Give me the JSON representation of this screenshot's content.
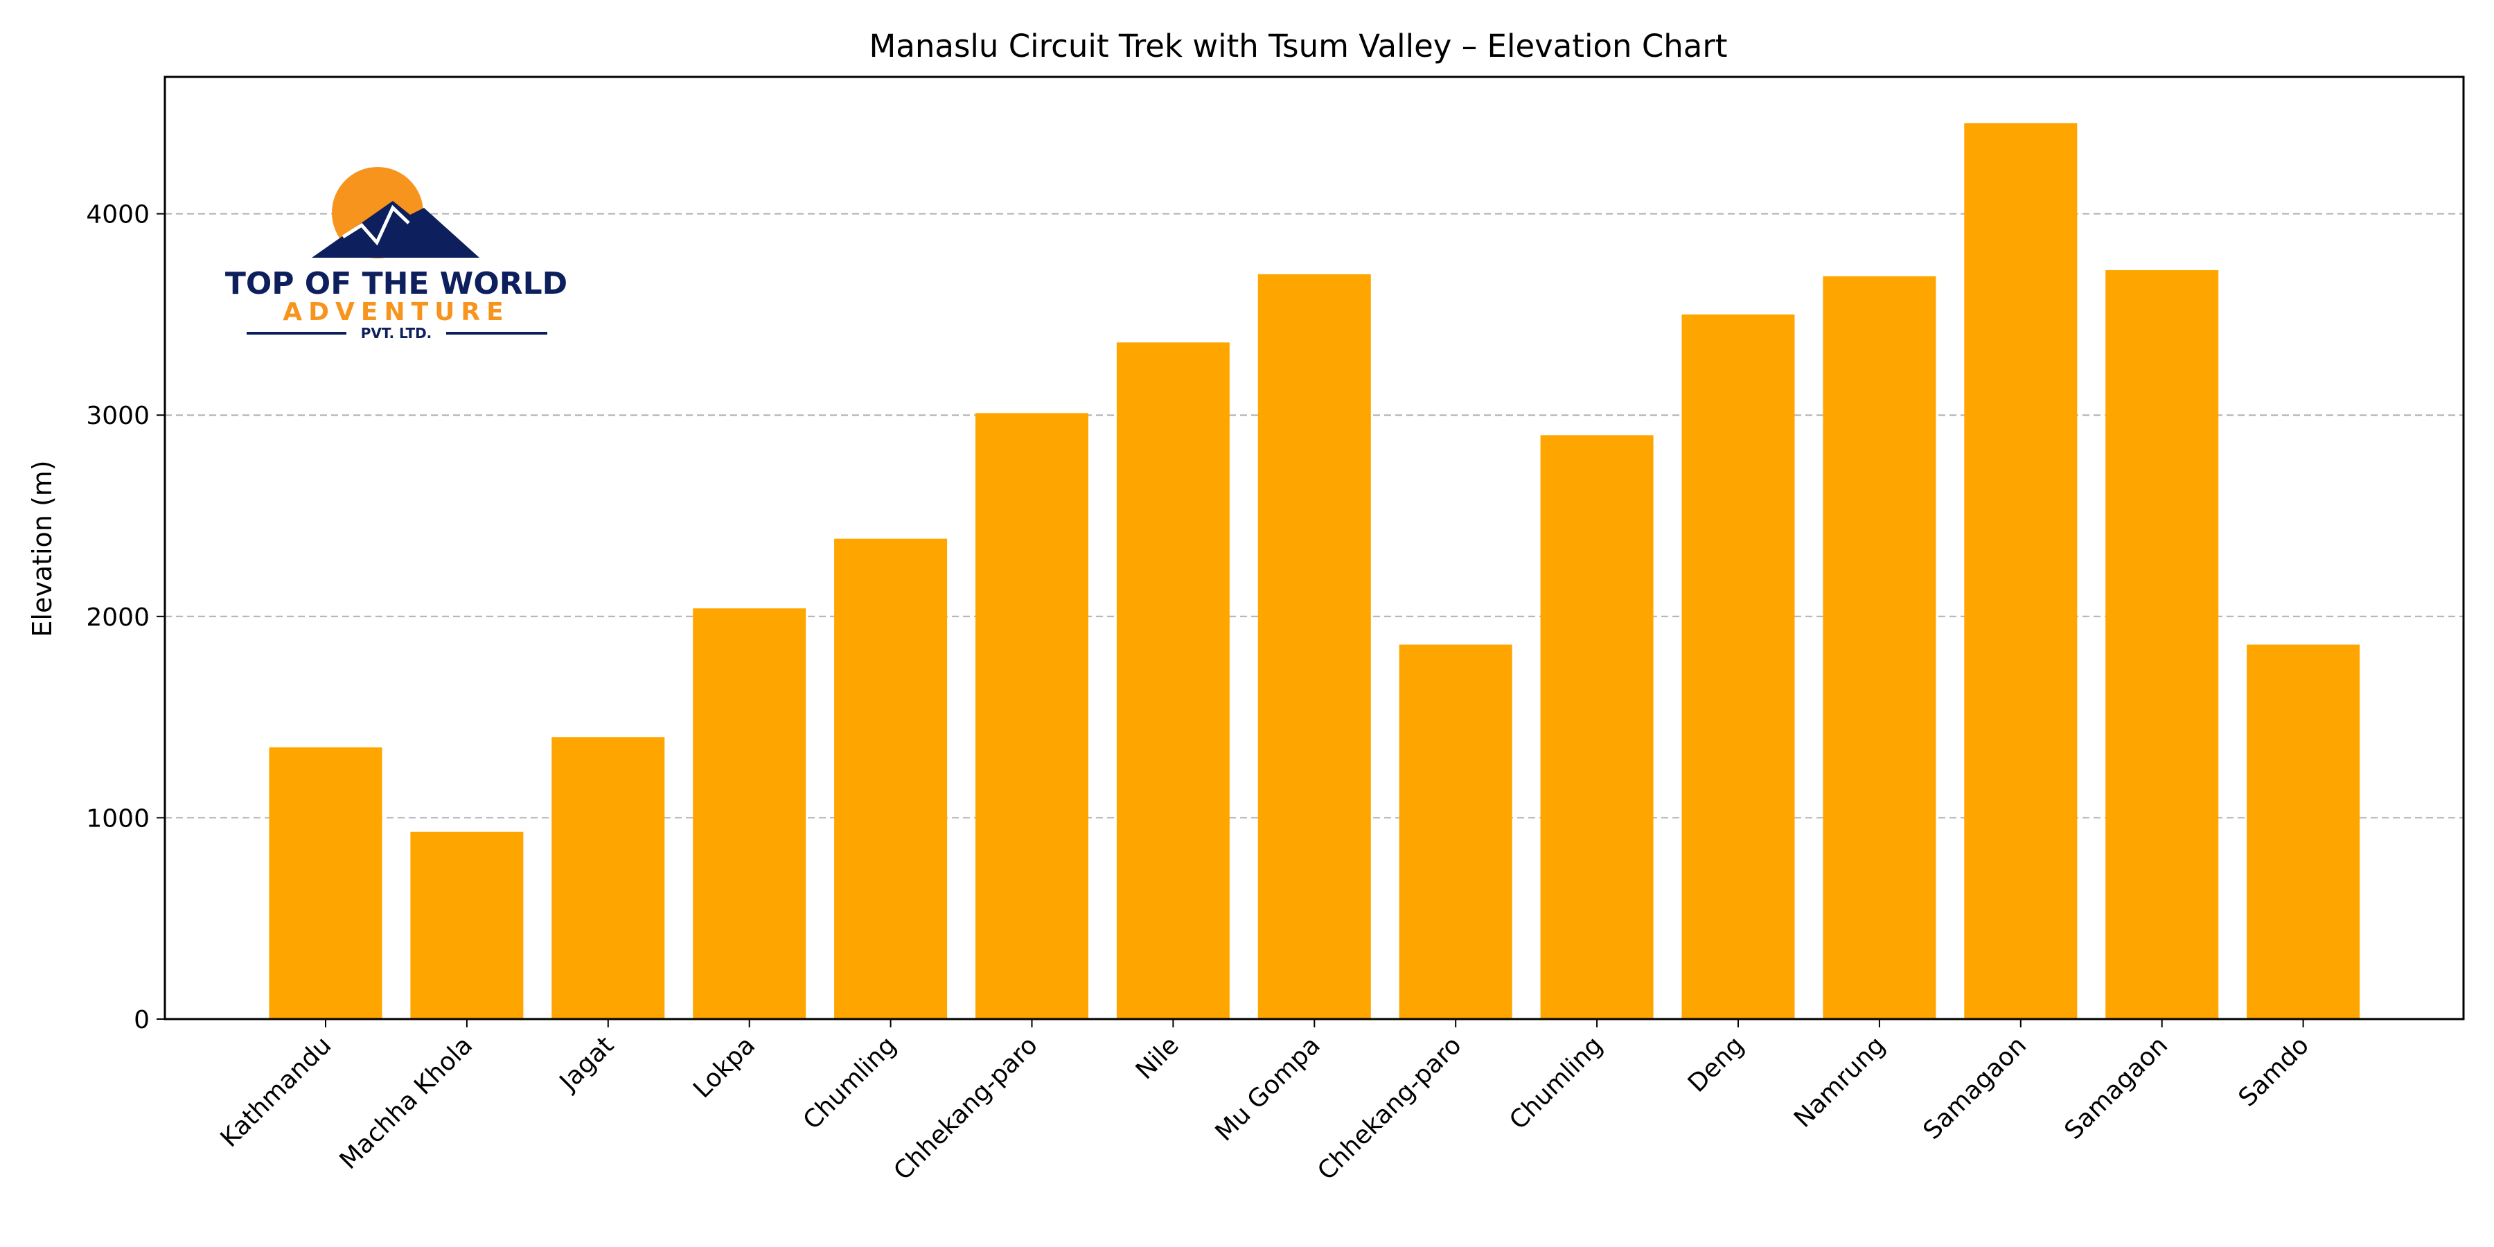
{
  "chart_data": {
    "type": "bar",
    "title": "Manaslu Circuit Trek with Tsum Valley – Elevation Chart",
    "xlabel": "",
    "ylabel": "Elevation (m)",
    "ylim": [
      0,
      4680
    ],
    "yticks": [
      0,
      1000,
      2000,
      3000,
      4000
    ],
    "grid": "y-dashed",
    "categories": [
      "Kathmandu",
      "Machha Khola",
      "Jagat",
      "Lokpa",
      "Chumling",
      "Chhekang-paro",
      "Nile",
      "Mu Gompa",
      "Chhekang-paro",
      "Chumling",
      "Deng",
      "Namrung",
      "Samagaon",
      "Samagaon",
      "Samdo"
    ],
    "values": [
      1350,
      930,
      1400,
      2040,
      2386,
      3010,
      3361,
      3700,
      1860,
      2900,
      3500,
      3690,
      4450,
      3720,
      1860
    ],
    "bar_color": "#ffa500"
  },
  "logo": {
    "line1": "Top Of The World",
    "line2": "Adventure",
    "line3": "Pvt. Ltd.",
    "navy": "#0d1f5c",
    "orange": "#f7941d"
  }
}
